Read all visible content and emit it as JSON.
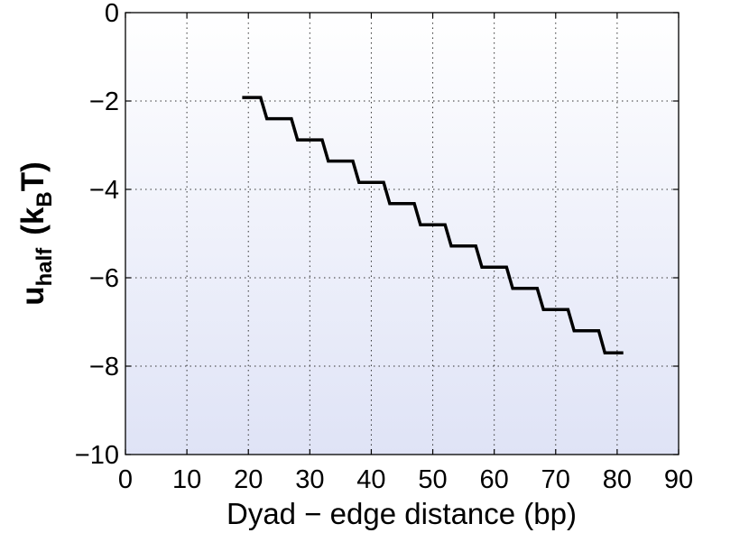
{
  "chart_data": {
    "type": "line",
    "xlabel": "Dyad − edge distance (bp)",
    "ylabel": {
      "main": "u",
      "main_sub": "half",
      "unit_prefix": "(k",
      "unit_sub": "B",
      "unit_suffix": "T)"
    },
    "xlim": [
      0,
      90
    ],
    "ylim": [
      -10,
      0
    ],
    "xticks": [
      0,
      10,
      20,
      30,
      40,
      50,
      60,
      70,
      80,
      90
    ],
    "yticks": [
      0,
      -2,
      -4,
      -6,
      -8,
      -10
    ],
    "xtick_labels": [
      "0",
      "10",
      "20",
      "30",
      "40",
      "50",
      "60",
      "70",
      "80",
      "90"
    ],
    "ytick_labels": [
      "0",
      "−2",
      "−4",
      "−6",
      "−8",
      "−10"
    ],
    "grid": true,
    "background_gradient": [
      "#ffffff",
      "#dfe3f6"
    ],
    "line_color": "#000000",
    "series": [
      {
        "x": [
          19,
          22,
          23,
          27,
          28,
          32,
          33,
          37,
          38,
          42,
          43,
          47,
          48,
          52,
          53,
          57,
          58,
          62,
          63,
          67,
          68,
          72,
          73,
          77,
          78,
          81
        ],
        "y": [
          -1.92,
          -1.92,
          -2.4,
          -2.4,
          -2.88,
          -2.88,
          -3.36,
          -3.36,
          -3.84,
          -3.84,
          -4.32,
          -4.32,
          -4.8,
          -4.8,
          -5.28,
          -5.28,
          -5.76,
          -5.76,
          -6.24,
          -6.24,
          -6.72,
          -6.72,
          -7.2,
          -7.2,
          -7.7,
          -7.7
        ]
      }
    ]
  }
}
